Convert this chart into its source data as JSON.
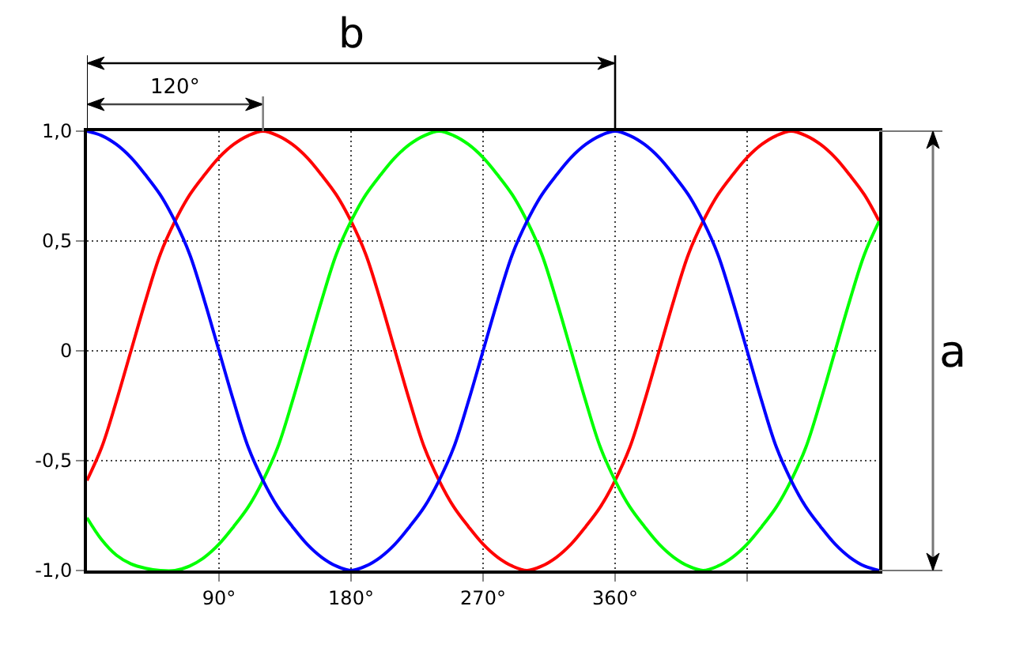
{
  "chart_data": {
    "type": "line",
    "x": [
      0,
      10,
      20,
      30,
      40,
      50,
      60,
      70,
      80,
      90,
      100,
      110,
      120,
      130,
      140,
      150,
      160,
      170,
      180,
      190,
      200,
      210,
      220,
      230,
      240,
      250,
      260,
      270,
      280,
      290,
      300,
      310,
      320,
      330,
      340,
      350,
      360,
      370,
      380,
      390,
      400,
      410,
      420,
      430,
      440,
      450,
      460,
      470,
      480,
      490,
      500,
      510,
      520,
      530,
      540
    ],
    "series": [
      {
        "color": "#ff0000",
        "values": [
          -0.59,
          -0.44,
          -0.23,
          0,
          0.23,
          0.44,
          0.59,
          0.71,
          0.8,
          0.88,
          0.94,
          0.98,
          1,
          0.98,
          0.94,
          0.88,
          0.8,
          0.71,
          0.59,
          0.44,
          0.23,
          0,
          -0.23,
          -0.44,
          -0.59,
          -0.71,
          -0.8,
          -0.88,
          -0.94,
          -0.98,
          -1,
          -0.98,
          -0.94,
          -0.88,
          -0.8,
          -0.71,
          -0.59,
          -0.44,
          -0.23,
          0,
          0.23,
          0.44,
          0.59,
          0.71,
          0.8,
          0.88,
          0.94,
          0.98,
          1,
          0.98,
          0.94,
          0.88,
          0.8,
          0.71,
          0.59
        ]
      },
      {
        "color": "#00ff00",
        "values": [
          -0.76,
          -0.86,
          -0.93,
          -0.97,
          -0.99,
          -1,
          -1,
          -0.98,
          -0.94,
          -0.88,
          -0.8,
          -0.71,
          -0.59,
          -0.44,
          -0.23,
          0,
          0.23,
          0.44,
          0.59,
          0.71,
          0.8,
          0.88,
          0.94,
          0.98,
          1,
          0.98,
          0.94,
          0.88,
          0.8,
          0.71,
          0.59,
          0.44,
          0.23,
          0,
          -0.23,
          -0.44,
          -0.59,
          -0.71,
          -0.8,
          -0.88,
          -0.94,
          -0.98,
          -1,
          -0.98,
          -0.94,
          -0.88,
          -0.8,
          -0.71,
          -0.59,
          -0.44,
          -0.23,
          0,
          0.23,
          0.44,
          0.59
        ]
      },
      {
        "color": "#0000ff",
        "values": [
          1,
          0.98,
          0.94,
          0.88,
          0.8,
          0.71,
          0.59,
          0.44,
          0.23,
          0,
          -0.23,
          -0.44,
          -0.59,
          -0.71,
          -0.8,
          -0.88,
          -0.94,
          -0.98,
          -1,
          -0.98,
          -0.94,
          -0.88,
          -0.8,
          -0.71,
          -0.59,
          -0.44,
          -0.23,
          0,
          0.23,
          0.44,
          0.59,
          0.71,
          0.8,
          0.88,
          0.94,
          0.98,
          1,
          0.98,
          0.94,
          0.88,
          0.8,
          0.71,
          0.59,
          0.44,
          0.23,
          0,
          -0.23,
          -0.44,
          -0.59,
          -0.71,
          -0.8,
          -0.88,
          -0.94,
          -0.98,
          -1
        ]
      }
    ],
    "xlim": [
      0,
      540
    ],
    "ylim": [
      -1,
      1
    ],
    "xticks": [
      {
        "value": 90,
        "label": "90°"
      },
      {
        "value": 180,
        "label": "180°"
      },
      {
        "value": 270,
        "label": "270°"
      },
      {
        "value": 360,
        "label": "360°"
      },
      {
        "value": 450,
        "label": null
      }
    ],
    "yticks": [
      {
        "value": -1,
        "label": "-1,0"
      },
      {
        "value": -0.5,
        "label": "-0,5"
      },
      0,
      {
        "value": 0.5,
        "label": "0,5"
      },
      {
        "value": 1,
        "label": "1,0"
      }
    ],
    "grid": true,
    "annotations": [
      "120°",
      "b",
      "a"
    ]
  }
}
